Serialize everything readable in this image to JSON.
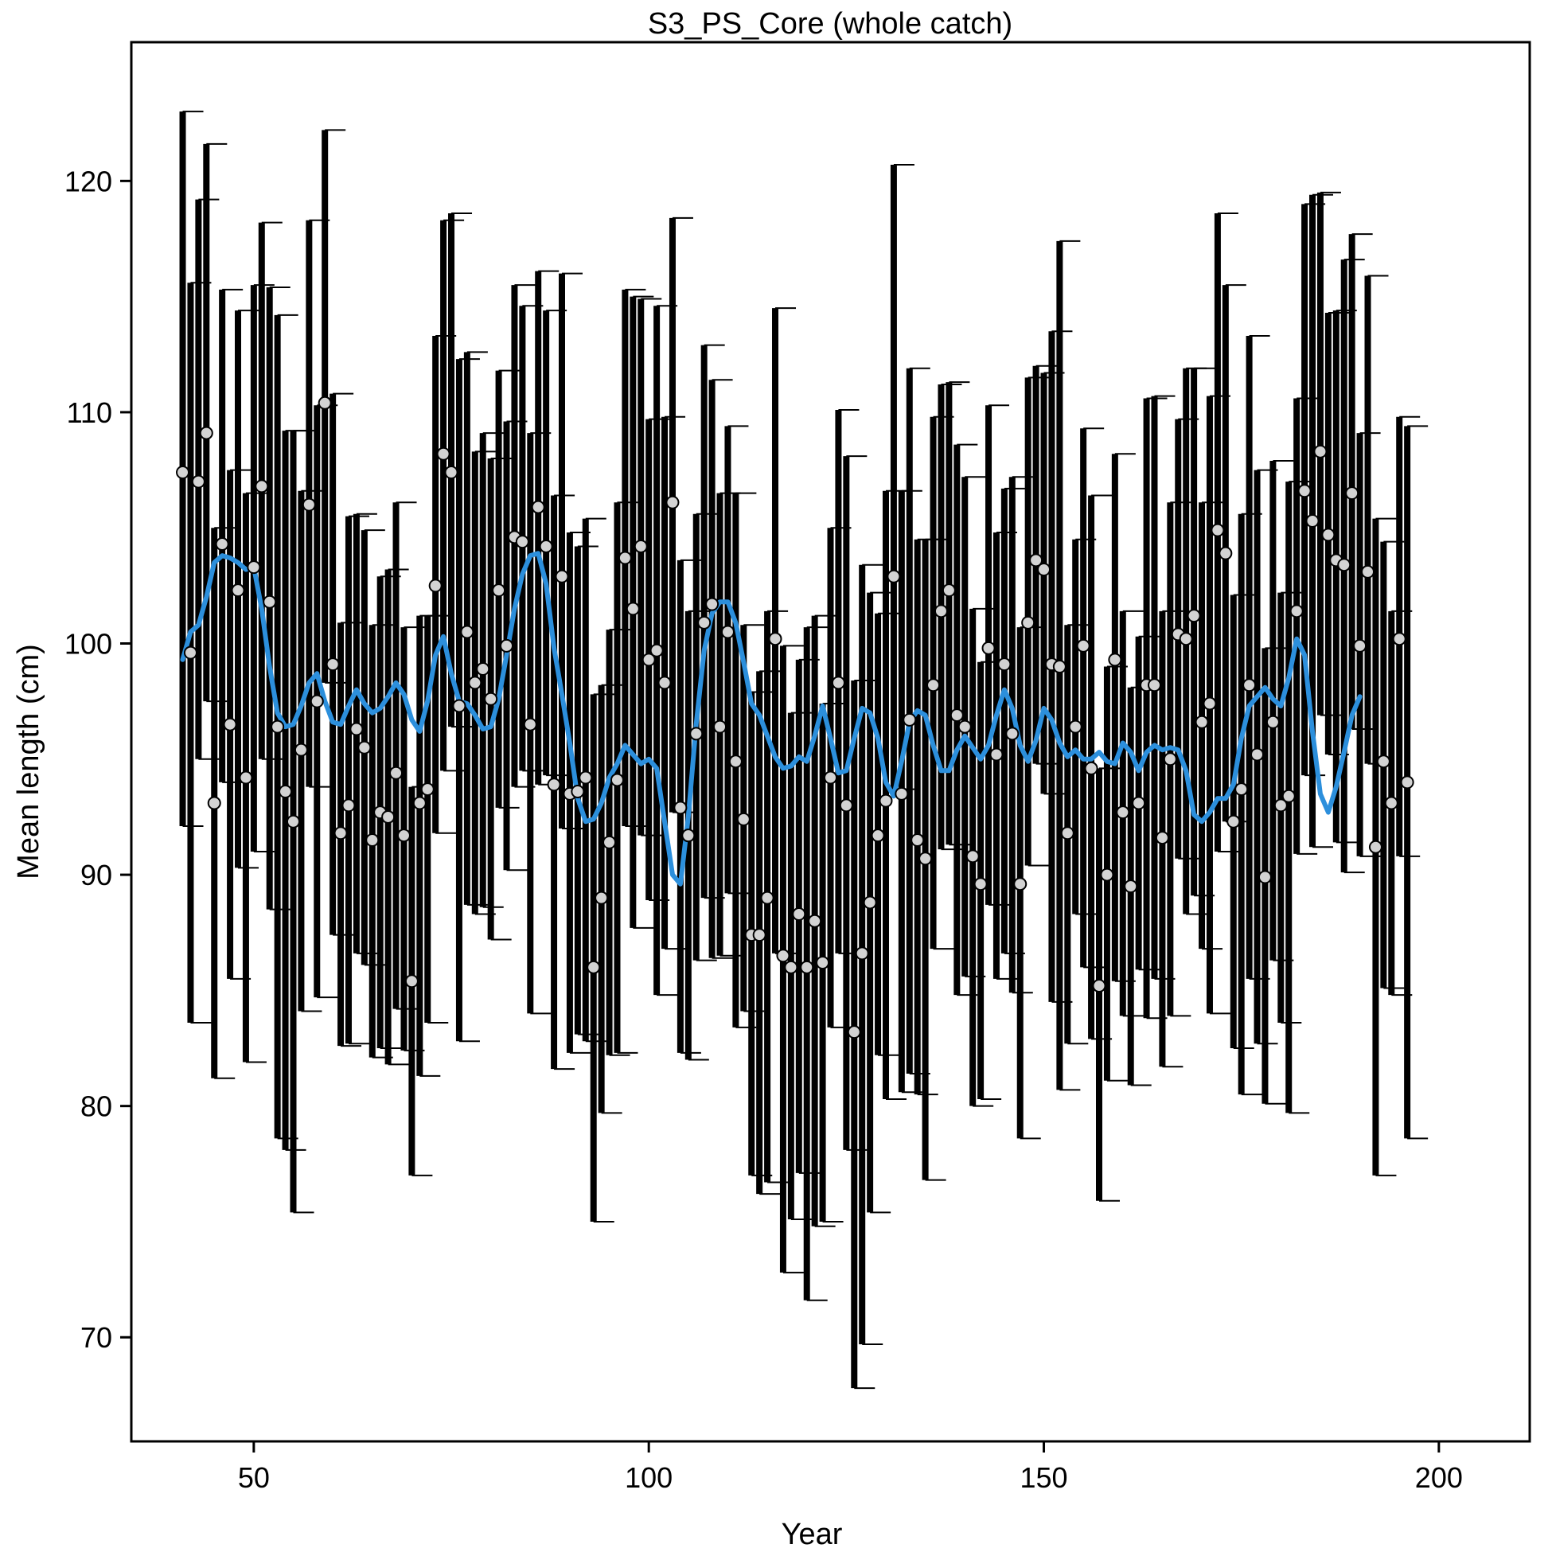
{
  "chart_data": {
    "type": "scatter",
    "title": "S3_PS_Core (whole catch)",
    "xlabel": "Year",
    "ylabel": "Mean length (cm)",
    "xlim": [
      34.5,
      211.5
    ],
    "ylim": [
      65.5,
      126
    ],
    "xticks": [
      50,
      100,
      150,
      200
    ],
    "yticks": [
      70,
      80,
      90,
      100,
      110,
      120
    ],
    "grid": false,
    "legend": "none",
    "colors": {
      "axis": "#000000",
      "bar": "#000000",
      "point_fill": "#d3d3d3",
      "point_stroke": "#000000",
      "smooth": "#2c8fdc"
    },
    "x_start": 41,
    "observed": [
      107.4,
      99.6,
      107.0,
      109.1,
      93.1,
      104.3,
      96.5,
      102.3,
      94.2,
      103.3,
      106.8,
      101.8,
      96.4,
      93.6,
      92.3,
      95.4,
      106.0,
      97.5,
      110.4,
      99.1,
      91.8,
      93.0,
      96.3,
      95.5,
      91.5,
      92.7,
      92.5,
      94.4,
      91.7,
      85.4,
      93.1,
      93.7,
      102.5,
      108.2,
      107.4,
      97.3,
      100.5,
      98.3,
      98.9,
      97.6,
      102.3,
      99.9,
      104.6,
      104.4,
      96.5,
      105.9,
      104.2,
      93.9,
      102.9,
      93.5,
      93.6,
      94.2,
      86.0,
      89.0,
      91.4,
      94.1,
      103.7,
      101.5,
      104.2,
      99.3,
      99.7,
      98.3,
      106.1,
      92.9,
      91.7,
      96.1,
      100.9,
      101.7,
      96.4,
      100.5,
      94.9,
      92.4,
      87.4,
      87.4,
      89.0,
      100.2,
      86.5,
      86.0,
      88.3,
      86.0,
      88.0,
      86.2,
      94.2,
      98.3,
      93.0,
      83.2,
      86.6,
      88.8,
      91.7,
      93.2,
      102.9,
      93.5,
      96.7,
      91.5,
      90.7,
      98.2,
      101.4,
      102.3,
      96.9,
      96.4,
      90.8,
      89.6,
      99.8,
      95.2,
      99.1,
      96.1,
      89.6,
      100.9,
      103.6,
      103.2,
      99.1,
      99.0,
      91.8,
      96.4,
      99.9,
      94.6,
      85.2,
      90.0,
      99.3,
      92.7,
      89.5,
      93.1,
      98.2,
      98.2,
      91.6,
      95.0,
      100.4,
      100.2,
      101.2,
      96.6,
      97.4,
      104.9,
      103.9,
      92.3,
      93.7,
      98.2,
      95.2,
      89.9,
      96.6,
      93.0,
      93.4,
      101.4,
      106.6,
      105.3,
      108.3,
      104.7,
      103.6,
      103.4,
      106.5,
      99.9,
      103.1,
      91.2,
      94.9,
      93.1,
      100.2,
      94.0
    ],
    "lower": [
      92.1,
      83.6,
      95.0,
      97.5,
      81.2,
      94.0,
      85.5,
      90.3,
      81.9,
      91.0,
      95.0,
      88.5,
      78.6,
      78.1,
      75.4,
      84.1,
      93.8,
      84.7,
      98.3,
      87.4,
      82.6,
      82.7,
      86.6,
      86.1,
      82.1,
      82.5,
      81.8,
      84.2,
      82.4,
      77.0,
      81.3,
      83.6,
      91.8,
      94.5,
      96.4,
      82.8,
      88.7,
      88.3,
      88.6,
      87.2,
      92.9,
      90.2,
      93.8,
      94.5,
      84.0,
      93.9,
      94.3,
      81.6,
      92.0,
      82.3,
      83.1,
      82.8,
      75.0,
      79.7,
      82.2,
      82.3,
      92.1,
      87.7,
      91.7,
      88.9,
      84.8,
      86.8,
      92.7,
      82.3,
      82.0,
      86.3,
      89.0,
      86.4,
      86.5,
      89.2,
      83.4,
      84.1,
      77.0,
      76.2,
      76.7,
      86.6,
      72.8,
      75.1,
      77.1,
      71.6,
      74.8,
      75.0,
      83.4,
      86.6,
      78.1,
      67.8,
      69.7,
      75.4,
      82.2,
      80.3,
      93.7,
      80.6,
      81.4,
      80.5,
      76.8,
      86.8,
      91.1,
      91.3,
      84.8,
      85.6,
      80.0,
      80.3,
      88.7,
      85.5,
      86.6,
      84.9,
      78.6,
      90.4,
      94.8,
      93.5,
      84.5,
      80.7,
      82.7,
      88.3,
      86.0,
      82.9,
      75.9,
      81.1,
      85.4,
      83.9,
      80.9,
      85.9,
      83.8,
      85.5,
      81.7,
      83.9,
      90.7,
      88.3,
      89.1,
      86.8,
      84.0,
      91.0,
      92.3,
      82.5,
      80.5,
      85.5,
      82.7,
      80.1,
      86.3,
      83.6,
      79.7,
      90.9,
      94.3,
      91.2,
      96.9,
      95.2,
      91.4,
      90.1,
      96.3,
      90.8,
      94.8,
      77.0,
      85.1,
      84.8,
      90.8,
      78.6
    ],
    "upper": [
      123.0,
      115.6,
      119.2,
      121.6,
      105.0,
      115.3,
      107.5,
      114.4,
      106.5,
      115.5,
      118.2,
      115.4,
      114.2,
      109.2,
      109.2,
      106.6,
      118.3,
      110.3,
      122.2,
      110.8,
      100.9,
      105.5,
      105.6,
      104.9,
      100.8,
      102.9,
      103.2,
      106.1,
      100.7,
      93.8,
      101.2,
      101.2,
      113.3,
      118.3,
      118.6,
      112.3,
      112.6,
      108.3,
      109.1,
      108.0,
      111.8,
      109.6,
      115.5,
      114.6,
      109.1,
      116.1,
      114.4,
      106.4,
      116.0,
      104.8,
      104.2,
      105.4,
      97.8,
      98.2,
      100.6,
      106.1,
      115.3,
      115.0,
      114.9,
      109.7,
      114.6,
      109.8,
      118.4,
      103.6,
      101.4,
      105.6,
      112.9,
      111.4,
      106.5,
      109.4,
      106.5,
      100.8,
      97.9,
      98.8,
      101.4,
      114.5,
      99.9,
      97.0,
      99.3,
      100.7,
      101.2,
      97.4,
      105.0,
      110.1,
      108.1,
      98.4,
      103.4,
      102.2,
      101.3,
      106.6,
      120.7,
      106.6,
      111.9,
      104.5,
      104.5,
      109.8,
      111.2,
      111.3,
      108.6,
      107.2,
      101.5,
      99.2,
      110.3,
      104.8,
      106.7,
      107.2,
      100.7,
      111.5,
      112.0,
      111.7,
      113.5,
      117.4,
      100.8,
      104.5,
      109.3,
      106.4,
      94.6,
      99.0,
      108.2,
      101.4,
      98.1,
      100.3,
      110.6,
      110.7,
      101.4,
      106.1,
      109.7,
      111.9,
      111.9,
      106.1,
      110.7,
      118.6,
      115.5,
      102.1,
      105.6,
      113.3,
      107.5,
      99.8,
      107.9,
      102.2,
      107.0,
      110.6,
      119.0,
      119.4,
      119.5,
      114.3,
      114.4,
      116.6,
      117.7,
      109.1,
      115.9,
      105.4,
      104.4,
      101.4,
      109.8,
      109.4
    ],
    "smooth_points": [
      [
        41,
        99.3
      ],
      [
        42,
        100.5
      ],
      [
        43,
        100.8
      ],
      [
        44,
        102.0
      ],
      [
        45,
        103.5
      ],
      [
        46,
        103.8
      ],
      [
        47,
        103.7
      ],
      [
        48,
        103.5
      ],
      [
        49,
        103.2
      ],
      [
        50,
        103.3
      ],
      [
        51,
        101.5
      ],
      [
        52,
        99.0
      ],
      [
        53,
        97.0
      ],
      [
        54,
        96.4
      ],
      [
        55,
        96.5
      ],
      [
        56,
        97.3
      ],
      [
        57,
        98.3
      ],
      [
        58,
        98.7
      ],
      [
        59,
        97.5
      ],
      [
        60,
        96.6
      ],
      [
        61,
        96.5
      ],
      [
        62,
        97.3
      ],
      [
        63,
        98.0
      ],
      [
        64,
        97.4
      ],
      [
        65,
        97.0
      ],
      [
        66,
        97.2
      ],
      [
        67,
        97.7
      ],
      [
        68,
        98.3
      ],
      [
        69,
        97.8
      ],
      [
        70,
        96.7
      ],
      [
        71,
        96.2
      ],
      [
        72,
        97.5
      ],
      [
        73,
        99.5
      ],
      [
        74,
        100.3
      ],
      [
        75,
        98.7
      ],
      [
        76,
        97.5
      ],
      [
        77,
        97.4
      ],
      [
        78,
        96.9
      ],
      [
        79,
        96.3
      ],
      [
        80,
        96.4
      ],
      [
        81,
        97.6
      ],
      [
        82,
        99.5
      ],
      [
        83,
        101.5
      ],
      [
        84,
        103.0
      ],
      [
        85,
        103.8
      ],
      [
        86,
        103.9
      ],
      [
        87,
        102.6
      ],
      [
        88,
        99.8
      ],
      [
        89,
        97.8
      ],
      [
        90,
        95.7
      ],
      [
        91,
        93.3
      ],
      [
        92,
        92.3
      ],
      [
        93,
        92.4
      ],
      [
        94,
        93.1
      ],
      [
        95,
        94.2
      ],
      [
        96,
        94.8
      ],
      [
        97,
        95.6
      ],
      [
        98,
        95.2
      ],
      [
        99,
        94.8
      ],
      [
        100,
        95.0
      ],
      [
        101,
        94.6
      ],
      [
        102,
        92.3
      ],
      [
        103,
        90.0
      ],
      [
        104,
        89.6
      ],
      [
        105,
        92.5
      ],
      [
        106,
        96.5
      ],
      [
        107,
        99.7
      ],
      [
        108,
        101.3
      ],
      [
        109,
        101.8
      ],
      [
        110,
        101.8
      ],
      [
        111,
        100.9
      ],
      [
        112,
        99.2
      ],
      [
        113,
        97.4
      ],
      [
        114,
        96.9
      ],
      [
        115,
        96.0
      ],
      [
        116,
        95.1
      ],
      [
        117,
        94.6
      ],
      [
        118,
        94.7
      ],
      [
        119,
        95.1
      ],
      [
        120,
        94.9
      ],
      [
        121,
        96.0
      ],
      [
        122,
        97.3
      ],
      [
        123,
        95.9
      ],
      [
        124,
        94.4
      ],
      [
        125,
        94.5
      ],
      [
        126,
        95.9
      ],
      [
        127,
        97.2
      ],
      [
        128,
        97.0
      ],
      [
        129,
        95.9
      ],
      [
        130,
        94.0
      ],
      [
        131,
        93.4
      ],
      [
        132,
        94.9
      ],
      [
        133,
        96.6
      ],
      [
        134,
        97.1
      ],
      [
        135,
        96.9
      ],
      [
        136,
        95.6
      ],
      [
        137,
        94.5
      ],
      [
        138,
        94.5
      ],
      [
        139,
        95.4
      ],
      [
        140,
        96.0
      ],
      [
        141,
        95.5
      ],
      [
        142,
        95.0
      ],
      [
        143,
        95.6
      ],
      [
        144,
        96.9
      ],
      [
        145,
        98.0
      ],
      [
        146,
        97.2
      ],
      [
        147,
        95.6
      ],
      [
        148,
        94.9
      ],
      [
        149,
        95.8
      ],
      [
        150,
        97.2
      ],
      [
        151,
        96.7
      ],
      [
        152,
        95.7
      ],
      [
        153,
        95.1
      ],
      [
        154,
        95.4
      ],
      [
        155,
        95.0
      ],
      [
        156,
        95.0
      ],
      [
        157,
        95.3
      ],
      [
        158,
        94.9
      ],
      [
        159,
        94.8
      ],
      [
        160,
        95.7
      ],
      [
        161,
        95.3
      ],
      [
        162,
        94.5
      ],
      [
        163,
        95.3
      ],
      [
        164,
        95.6
      ],
      [
        165,
        95.4
      ],
      [
        166,
        95.5
      ],
      [
        167,
        95.4
      ],
      [
        168,
        94.5
      ],
      [
        169,
        92.6
      ],
      [
        170,
        92.3
      ],
      [
        171,
        92.7
      ],
      [
        172,
        93.3
      ],
      [
        173,
        93.3
      ],
      [
        174,
        93.9
      ],
      [
        175,
        95.9
      ],
      [
        176,
        97.3
      ],
      [
        177,
        97.7
      ],
      [
        178,
        98.1
      ],
      [
        179,
        97.6
      ],
      [
        180,
        97.3
      ],
      [
        181,
        98.5
      ],
      [
        182,
        100.2
      ],
      [
        183,
        99.5
      ],
      [
        184,
        96.2
      ],
      [
        185,
        93.5
      ],
      [
        186,
        92.7
      ],
      [
        187,
        93.8
      ],
      [
        188,
        95.3
      ],
      [
        189,
        96.9
      ],
      [
        190,
        97.7
      ]
    ]
  }
}
